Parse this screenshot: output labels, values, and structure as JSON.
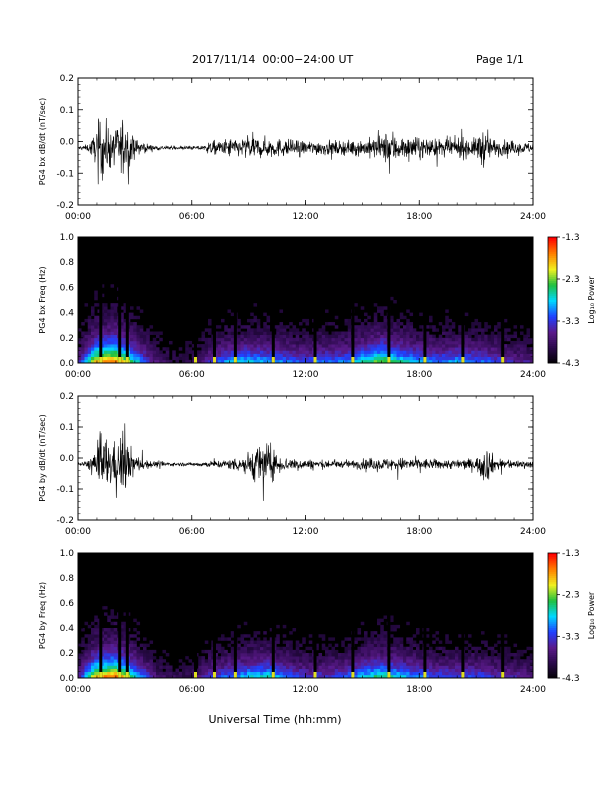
{
  "header": {
    "title": "2017/11/14  00:00−24:00 UT",
    "page": "Page 1/1"
  },
  "colors": {
    "spectrogram_background": "#000000",
    "trace": "#000000",
    "colormap": [
      "#000000",
      "#2a0a4a",
      "#5a1a8a",
      "#2040ff",
      "#00d8ff",
      "#20c040",
      "#f0f020",
      "#ff8000",
      "#ff0000"
    ]
  },
  "chart_data": [
    {
      "type": "line",
      "ylabel": "PG4 bx dB/dt (nT/sec)",
      "xlim": [
        0,
        24
      ],
      "ylim": [
        -0.2,
        0.2
      ],
      "xticks": [
        "00:00",
        "06:00",
        "12:00",
        "18:00",
        "24:00"
      ],
      "yticks": [
        "-0.2",
        "-0.1",
        "0.0",
        "0.1",
        "0.2"
      ],
      "x": [
        0,
        0.5,
        0.9,
        1.2,
        1.6,
        2.0,
        2.3,
        2.6,
        3.0,
        3.5,
        4.0,
        5.0,
        6.0,
        6.6,
        7.0,
        7.5,
        8.0,
        8.5,
        9.0,
        9.5,
        10.0,
        11.0,
        12.0,
        13.0,
        14.0,
        15.0,
        15.5,
        16.0,
        16.5,
        17.0,
        18.0,
        19.0,
        20.0,
        21.0,
        21.3,
        21.6,
        22.0,
        23.0,
        24.0
      ],
      "amplitude": [
        0.01,
        0.02,
        0.08,
        0.2,
        0.13,
        0.1,
        0.2,
        0.12,
        0.05,
        0.03,
        0.015,
        0.01,
        0.01,
        0.015,
        0.04,
        0.04,
        0.06,
        0.05,
        0.08,
        0.06,
        0.06,
        0.05,
        0.04,
        0.045,
        0.04,
        0.05,
        0.06,
        0.07,
        0.11,
        0.07,
        0.06,
        0.05,
        0.06,
        0.055,
        0.12,
        0.08,
        0.05,
        0.035,
        0.03
      ]
    },
    {
      "type": "heatmap",
      "ylabel": "PG4 bx Freq (Hz)",
      "colorbar_label": "Log₁₀ Power",
      "colorbar_ticks": [
        "-1.3",
        "-2.3",
        "-3.3",
        "-4.3"
      ],
      "clim": [
        -4.3,
        -1.3
      ],
      "xlim": [
        0,
        24
      ],
      "ylim": [
        0,
        1
      ],
      "xticks": [
        "00:00",
        "06:00",
        "12:00",
        "18:00",
        "24:00"
      ],
      "yticks": [
        "0.0",
        "0.2",
        "0.4",
        "0.6",
        "0.8",
        "1.0"
      ],
      "gap_hours": [
        1.2,
        2.2,
        2.6,
        6.2,
        7.2,
        8.3,
        10.3,
        12.5,
        14.5,
        16.4,
        18.3,
        20.3,
        22.4
      ],
      "activity_hours": [
        0,
        1,
        2,
        3,
        4,
        5,
        6,
        7,
        8,
        9,
        10,
        11,
        12,
        13,
        14,
        15,
        16,
        17,
        18,
        19,
        20,
        21,
        22,
        23,
        24
      ],
      "activity_level": [
        0.25,
        0.9,
        1.0,
        0.6,
        0.25,
        0.15,
        0.15,
        0.35,
        0.5,
        0.55,
        0.5,
        0.45,
        0.4,
        0.45,
        0.45,
        0.6,
        0.75,
        0.6,
        0.5,
        0.45,
        0.5,
        0.45,
        0.4,
        0.3,
        0.25
      ]
    },
    {
      "type": "line",
      "ylabel": "PG4 by dB/dt (nT/sec)",
      "xlim": [
        0,
        24
      ],
      "ylim": [
        -0.2,
        0.2
      ],
      "xticks": [
        "00:00",
        "06:00",
        "12:00",
        "18:00",
        "24:00"
      ],
      "yticks": [
        "-0.2",
        "-0.1",
        "0.0",
        "0.1",
        "0.2"
      ],
      "x": [
        0,
        0.5,
        0.9,
        1.2,
        1.6,
        2.0,
        2.3,
        2.6,
        3.0,
        3.5,
        4.0,
        5.0,
        6.0,
        7.0,
        8.0,
        8.8,
        9.3,
        9.6,
        10.0,
        10.5,
        11.0,
        12.0,
        13.0,
        14.0,
        15.0,
        16.0,
        17.0,
        18.0,
        19.0,
        20.0,
        21.0,
        21.5,
        22.0,
        23.0,
        24.0
      ],
      "amplitude": [
        0.01,
        0.02,
        0.1,
        0.2,
        0.15,
        0.12,
        0.2,
        0.14,
        0.06,
        0.03,
        0.02,
        0.01,
        0.01,
        0.02,
        0.03,
        0.06,
        0.1,
        0.15,
        0.12,
        0.06,
        0.04,
        0.03,
        0.025,
        0.02,
        0.03,
        0.035,
        0.04,
        0.035,
        0.03,
        0.03,
        0.035,
        0.12,
        0.04,
        0.025,
        0.02
      ]
    },
    {
      "type": "heatmap",
      "ylabel": "PG4 by Freq (Hz)",
      "colorbar_label": "Log₁₀ Power",
      "colorbar_ticks": [
        "-1.3",
        "-2.3",
        "-3.3",
        "-4.3"
      ],
      "clim": [
        -4.3,
        -1.3
      ],
      "xlim": [
        0,
        24
      ],
      "ylim": [
        0,
        1
      ],
      "xticks": [
        "00:00",
        "06:00",
        "12:00",
        "18:00",
        "24:00"
      ],
      "yticks": [
        "0.0",
        "0.2",
        "0.4",
        "0.6",
        "0.8",
        "1.0"
      ],
      "xlabel": "Universal Time (hh:mm)",
      "gap_hours": [
        1.2,
        2.2,
        2.6,
        6.2,
        7.2,
        8.3,
        10.3,
        12.5,
        14.5,
        16.4,
        18.3,
        20.3,
        22.4
      ],
      "activity_hours": [
        0,
        1,
        2,
        3,
        4,
        5,
        6,
        7,
        8,
        9,
        10,
        11,
        12,
        13,
        14,
        15,
        16,
        17,
        18,
        19,
        20,
        21,
        22,
        23,
        24
      ],
      "activity_level": [
        0.25,
        0.9,
        1.0,
        0.6,
        0.25,
        0.15,
        0.15,
        0.35,
        0.45,
        0.55,
        0.6,
        0.45,
        0.35,
        0.35,
        0.4,
        0.55,
        0.65,
        0.55,
        0.45,
        0.4,
        0.4,
        0.4,
        0.35,
        0.3,
        0.25
      ]
    }
  ]
}
